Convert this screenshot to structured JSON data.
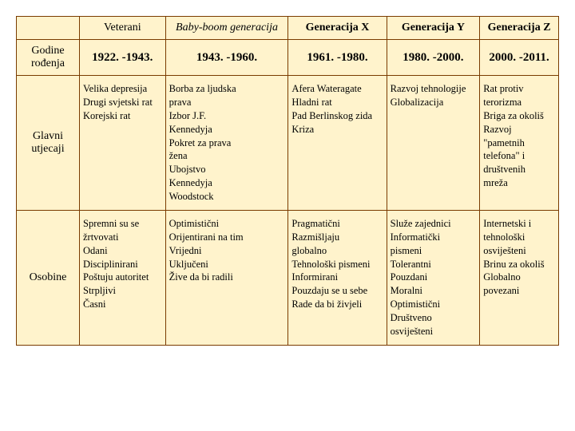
{
  "table": {
    "background_color": "#fff3cc",
    "border_color": "#7a3b00",
    "columns": [
      {
        "label": "Veterani",
        "bold": false,
        "italic": false
      },
      {
        "label": "Baby-boom generacija",
        "bold": false,
        "italic": true
      },
      {
        "label": "Generacija X",
        "bold": true,
        "italic": false
      },
      {
        "label": "Generacija Y",
        "bold": true,
        "italic": false
      },
      {
        "label": "Generacija Z",
        "bold": true,
        "italic": false
      }
    ],
    "rows": [
      {
        "header": "Godine rođenja",
        "cells": [
          "1922. -1943.",
          "1943. -1960.",
          "1961. -1980.",
          "1980. -2000.",
          "2000. -2011."
        ],
        "type": "years"
      },
      {
        "header": "Glavni utjecaji",
        "cells": [
          "Velika depresija\nDrugi svjetski rat\nKorejski rat",
          "Borba za ljudska\n       prava\nIzbor J.F.\n       Kennedyja\nPokret za prava\n       žena\nUbojstvo\n       Kennedyja\nWoodstock",
          "Afera Wateragate\nHladni rat\nPad Berlinskog zida\nKriza",
          "Razvoj tehnologije\nGlobalizacija",
          "Rat protiv\n       terorizma\nBriga za okoliš\nRazvoj\n       \"pametnih\n       telefona\" i\n       društvenih\n       mreža"
        ],
        "type": "content"
      },
      {
        "header": "Osobine",
        "cells": [
          "Spremni su se\n       žrtvovati\nOdani\nDisciplinirani\nPoštuju autoritet\nStrpljivi\nČasni",
          "Optimistični\nOrijentirani na tim\nVrijedni\nUključeni\nŽive da bi radili",
          "Pragmatični\nRazmišljaju\n       globalno\nTehnološki pismeni\nInformirani\nPouzdaju se u sebe\nRade da bi živjeli",
          "Služe zajednici\nInformatički\n       pismeni\nTolerantni\nPouzdani\nMoralni\nOptimistični\nDruštveno\n       osviješteni",
          "Internetski i\n       tehnološki\n       osviješteni\nBrinu za okoliš\nGlobalno\n       povezani"
        ],
        "type": "content"
      }
    ]
  }
}
